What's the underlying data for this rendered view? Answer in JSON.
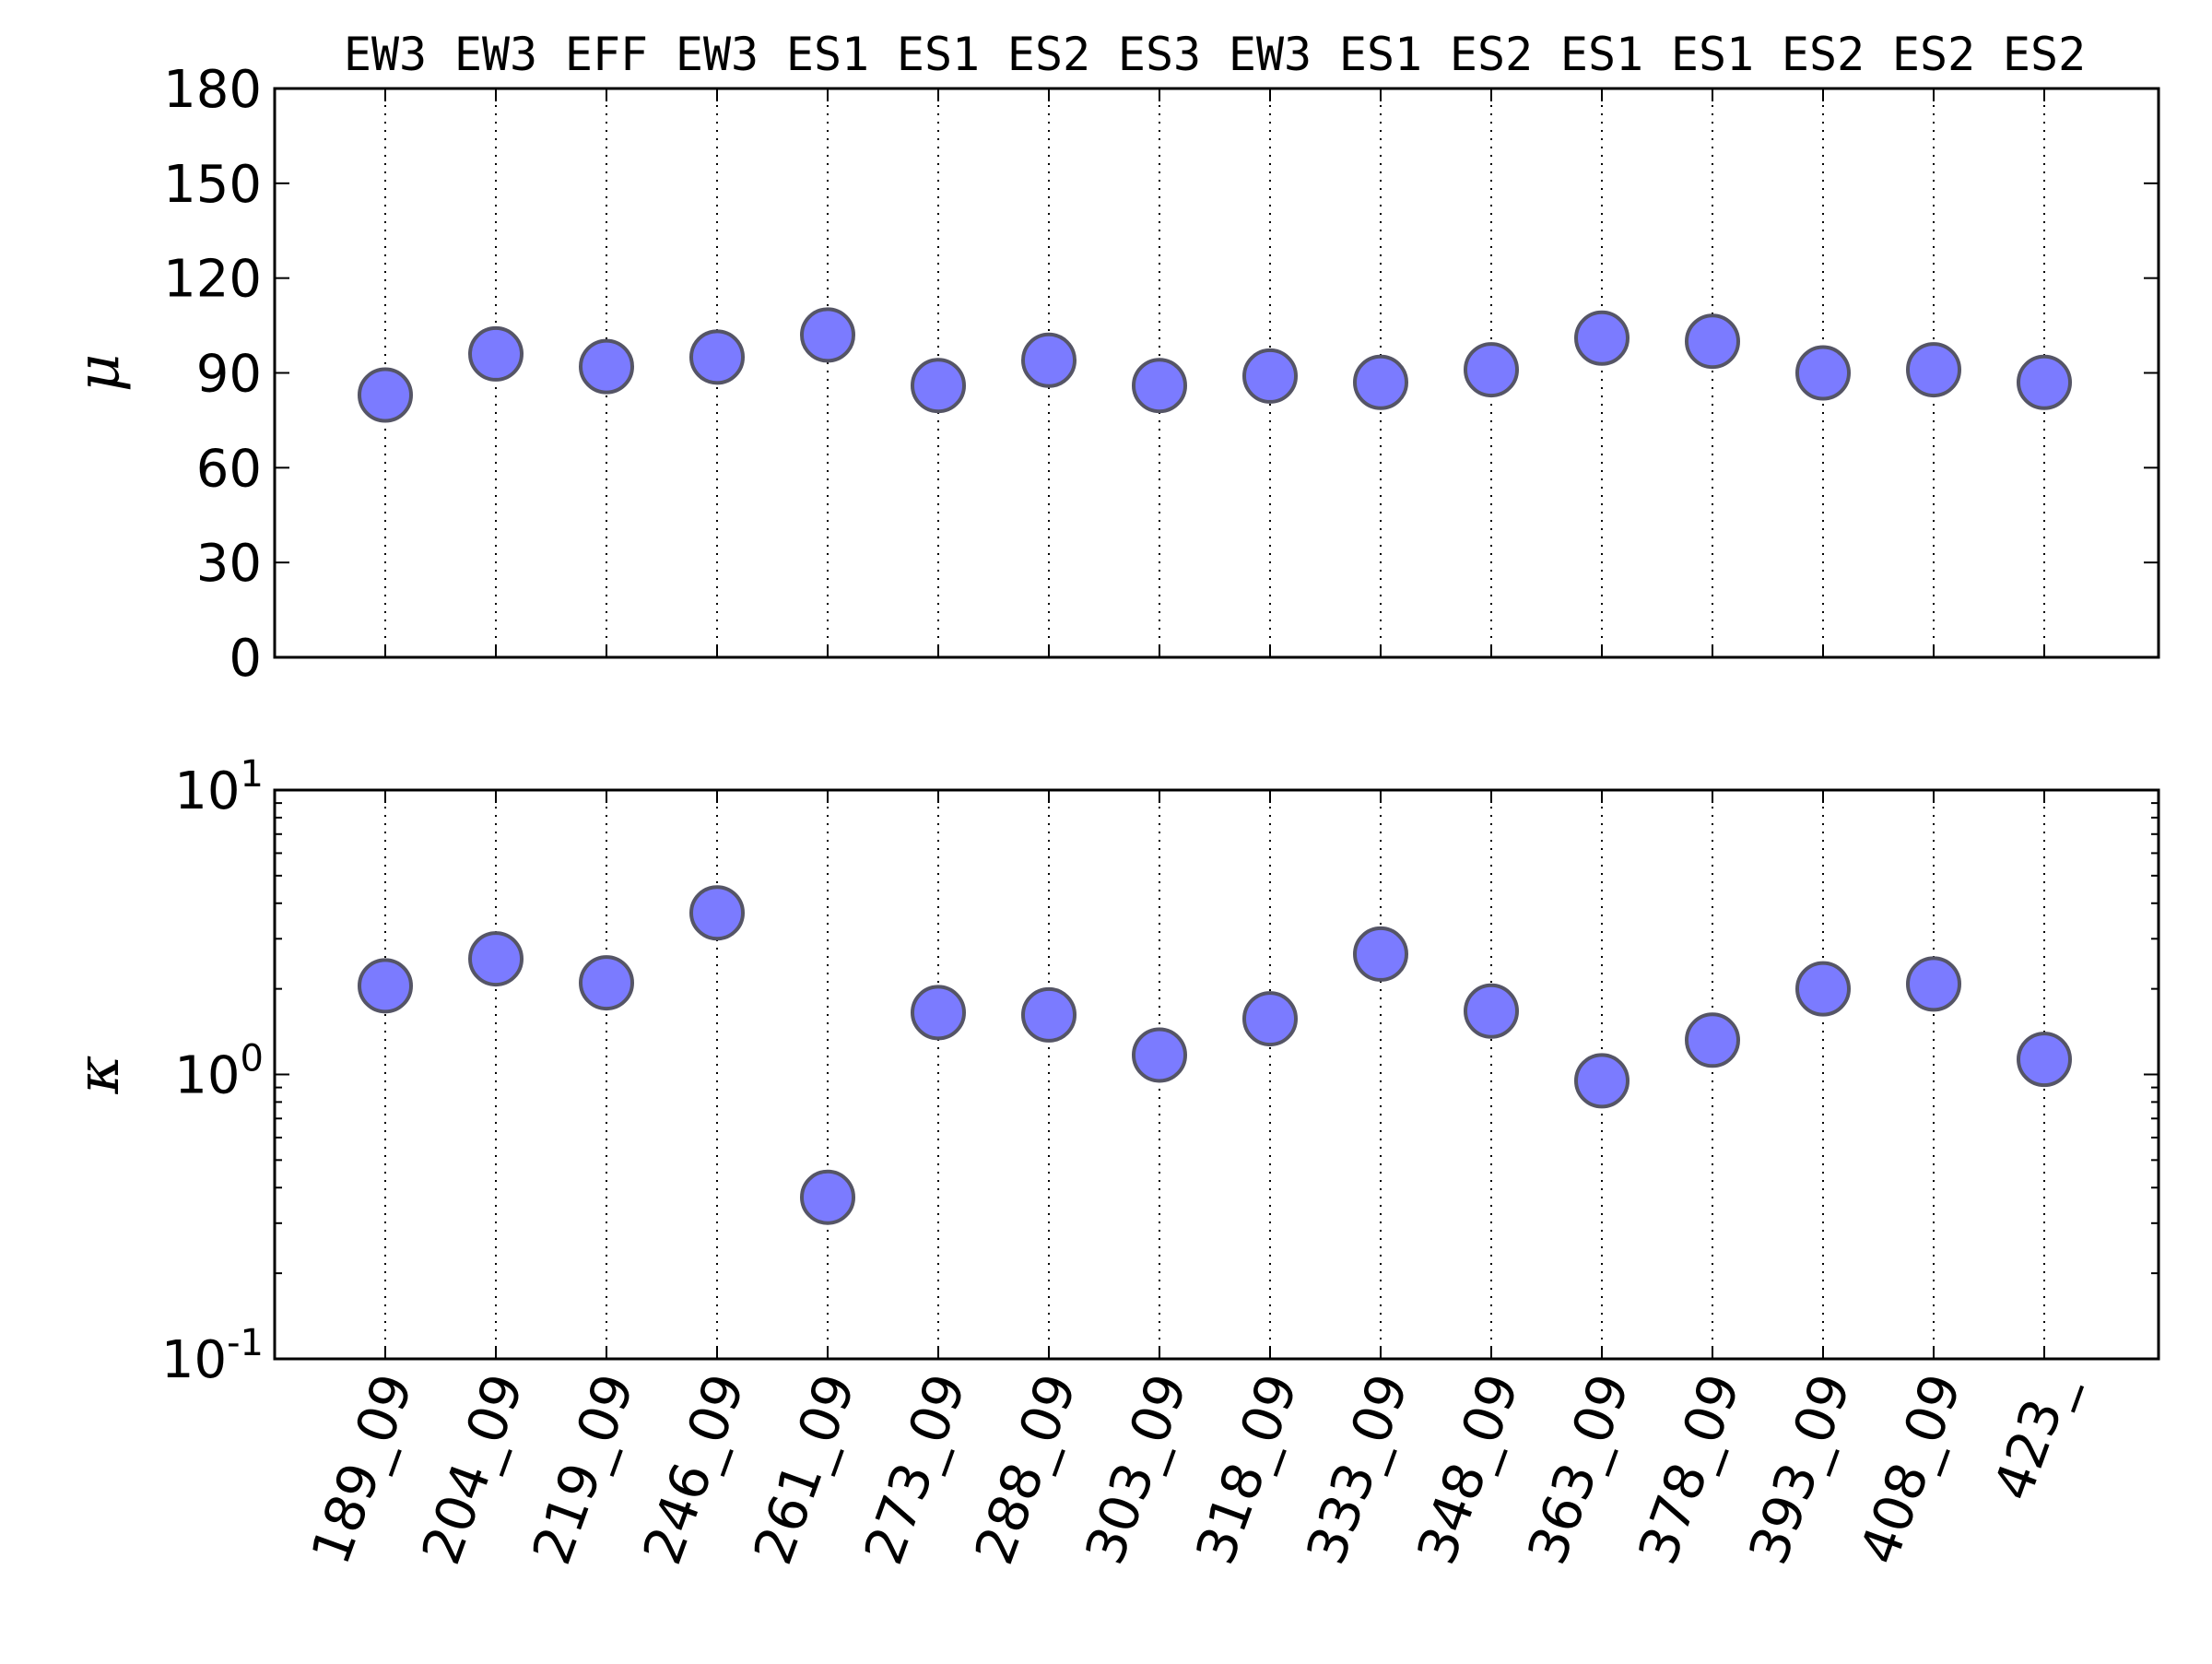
{
  "chart_data": {
    "type": "scatter",
    "categories": [
      "189_09",
      "204_09",
      "219_09",
      "246_09",
      "261_09",
      "273_09",
      "288_09",
      "303_09",
      "318_09",
      "333_09",
      "348_09",
      "363_09",
      "378_09",
      "393_09",
      "408_09",
      "423_"
    ],
    "top_labels": [
      "EW3",
      "EW3",
      "EFF",
      "EW3",
      "ES1",
      "ES1",
      "ES2",
      "ES3",
      "EW3",
      "ES1",
      "ES2",
      "ES1",
      "ES1",
      "ES2",
      "ES2",
      "ES2"
    ],
    "marker_color": "#7b7bff",
    "marker_edge_color": "#555566",
    "panels": [
      {
        "ylabel": "μ",
        "yscale": "linear",
        "ylim": [
          0,
          180
        ],
        "yticks": [
          0,
          30,
          60,
          90,
          120,
          150,
          180
        ],
        "ytick_labels": [
          "0",
          "30",
          "60",
          "90",
          "120",
          "150",
          "180"
        ],
        "values": [
          83,
          96,
          92,
          95,
          102,
          86,
          94,
          86,
          89,
          87,
          91,
          101,
          100,
          90,
          91,
          87
        ]
      },
      {
        "ylabel": "κ",
        "yscale": "log",
        "ylim": [
          0.1,
          10
        ],
        "yticks": [
          0.1,
          1,
          10
        ],
        "ytick_labels": [
          {
            "base": "10",
            "exp": "-1"
          },
          {
            "base": "10",
            "exp": "0"
          },
          {
            "base": "10",
            "exp": "1"
          }
        ],
        "values": [
          2.05,
          2.55,
          2.1,
          3.7,
          0.37,
          1.65,
          1.62,
          1.17,
          1.57,
          2.65,
          1.67,
          0.95,
          1.32,
          2.0,
          2.08,
          1.13
        ]
      }
    ],
    "grid": "vertical dotted"
  }
}
